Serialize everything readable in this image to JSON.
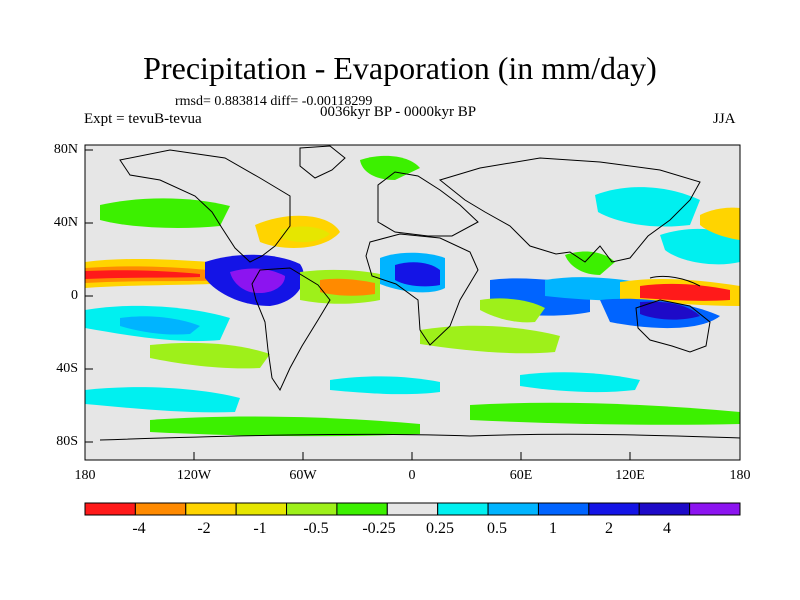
{
  "title": "Precipitation - Evaporation (in mm/day)",
  "stats": "rmsd= 0.883814  diff= -0.00118299",
  "experiment": "Expt = tevuB-tevua",
  "period": "0036kyr BP - 0000kyr BP",
  "season": "JJA",
  "lat_labels": [
    "80N",
    "40N",
    "0",
    "40S",
    "80S"
  ],
  "lon_labels": [
    "180",
    "120W",
    "60W",
    "0",
    "60E",
    "120E",
    "180"
  ],
  "colorbar": {
    "colors": [
      "#ff1a1a",
      "#ff8a00",
      "#ffd400",
      "#e6e600",
      "#9ef01a",
      "#3cf000",
      "#e6e6e6",
      "#00f0f0",
      "#00b4ff",
      "#0064ff",
      "#1414e6",
      "#1e0ac8",
      "#8c14f0"
    ],
    "labels": [
      "-4",
      "-2",
      "-1",
      "-0.5",
      "-0.25",
      "0.25",
      "0.5",
      "1",
      "2",
      "4"
    ]
  }
}
